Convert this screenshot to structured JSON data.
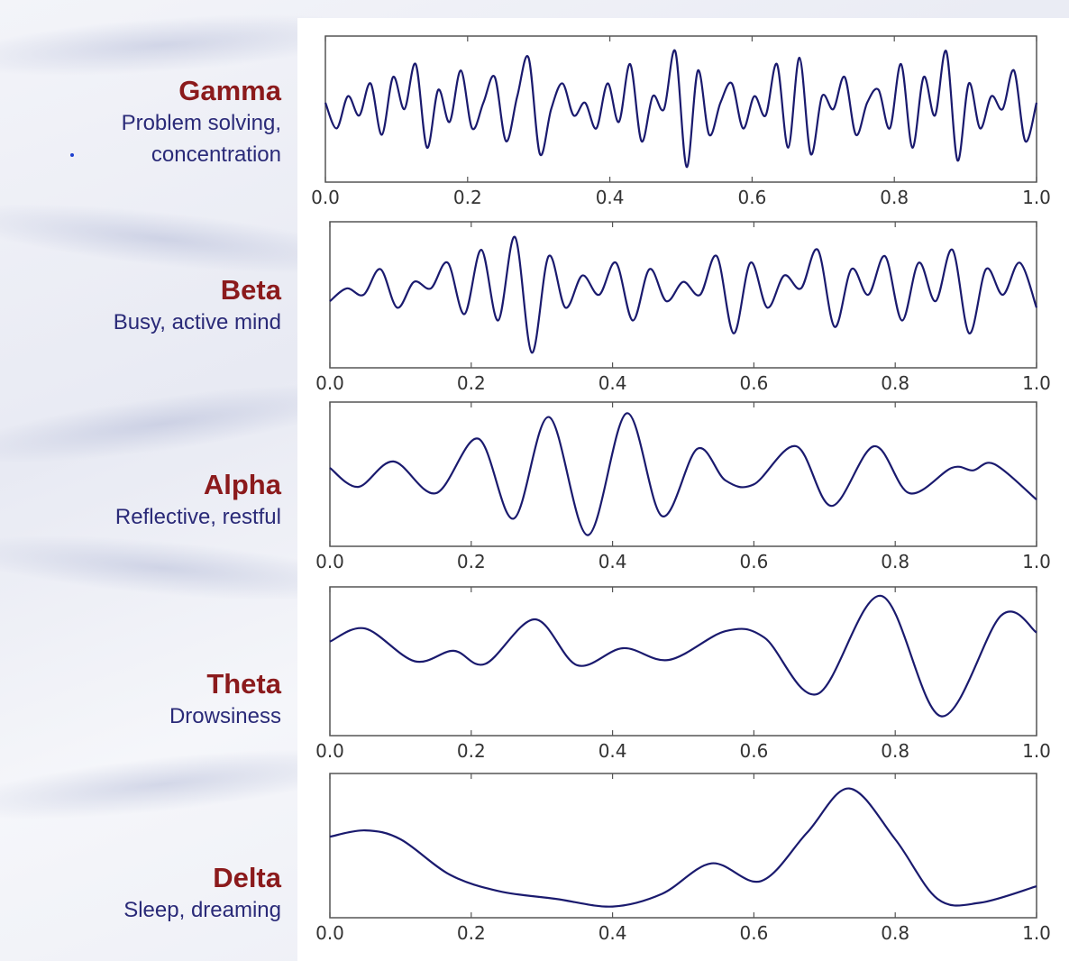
{
  "chart_data": [
    {
      "type": "line",
      "band": "Gamma",
      "description": "Problem solving, concentration",
      "xlim": [
        0.0,
        1.0
      ],
      "xticks": [
        "0.0",
        "0.2",
        "0.4",
        "0.6",
        "0.8",
        "1.0"
      ],
      "grid": false,
      "line_color": "#1a1a6e",
      "frequency_cycles_per_unit": 68,
      "y": [
        0.55,
        0.35,
        0.6,
        0.45,
        0.7,
        0.3,
        0.75,
        0.5,
        0.85,
        0.2,
        0.65,
        0.4,
        0.8,
        0.35,
        0.55,
        0.75,
        0.25,
        0.6,
        0.9,
        0.15,
        0.5,
        0.7,
        0.45,
        0.55,
        0.35,
        0.7,
        0.4,
        0.85,
        0.25,
        0.6,
        0.5,
        0.95,
        0.05,
        0.8,
        0.3,
        0.55,
        0.7,
        0.35,
        0.6,
        0.45,
        0.85,
        0.2,
        0.9,
        0.15,
        0.6,
        0.5,
        0.75,
        0.3,
        0.55,
        0.65,
        0.35,
        0.85,
        0.2,
        0.75,
        0.45,
        0.95,
        0.1,
        0.7,
        0.35,
        0.6,
        0.5,
        0.8,
        0.25,
        0.55
      ]
    },
    {
      "type": "line",
      "band": "Beta",
      "description": "Busy, active mind",
      "xlim": [
        0.0,
        1.0
      ],
      "xticks": [
        "0.0",
        "0.2",
        "0.4",
        "0.6",
        "0.8",
        "1.0"
      ],
      "grid": false,
      "line_color": "#1a1a6e",
      "frequency_cycles_per_unit": 38,
      "y": [
        0.45,
        0.55,
        0.5,
        0.7,
        0.4,
        0.6,
        0.55,
        0.75,
        0.35,
        0.85,
        0.3,
        0.95,
        0.05,
        0.8,
        0.4,
        0.65,
        0.5,
        0.75,
        0.3,
        0.7,
        0.45,
        0.6,
        0.5,
        0.8,
        0.2,
        0.75,
        0.4,
        0.65,
        0.55,
        0.85,
        0.25,
        0.7,
        0.5,
        0.8,
        0.3,
        0.75,
        0.45,
        0.85,
        0.2,
        0.7,
        0.5,
        0.75,
        0.4
      ]
    },
    {
      "type": "line",
      "band": "Alpha",
      "description": "Reflective, restful",
      "xlim": [
        0.0,
        1.0
      ],
      "xticks": [
        "0.0",
        "0.2",
        "0.4",
        "0.6",
        "0.8",
        "1.0"
      ],
      "grid": false,
      "line_color": "#1a1a6e",
      "points": [
        [
          0.0,
          0.55
        ],
        [
          0.04,
          0.4
        ],
        [
          0.09,
          0.6
        ],
        [
          0.15,
          0.35
        ],
        [
          0.21,
          0.78
        ],
        [
          0.26,
          0.15
        ],
        [
          0.31,
          0.95
        ],
        [
          0.365,
          0.02
        ],
        [
          0.42,
          0.98
        ],
        [
          0.47,
          0.17
        ],
        [
          0.52,
          0.7
        ],
        [
          0.56,
          0.45
        ],
        [
          0.6,
          0.42
        ],
        [
          0.66,
          0.72
        ],
        [
          0.71,
          0.25
        ],
        [
          0.77,
          0.72
        ],
        [
          0.82,
          0.35
        ],
        [
          0.88,
          0.55
        ],
        [
          0.91,
          0.53
        ],
        [
          0.94,
          0.58
        ],
        [
          1.0,
          0.3
        ]
      ]
    },
    {
      "type": "line",
      "band": "Theta",
      "description": "Drowsiness",
      "xlim": [
        0.0,
        1.0
      ],
      "xticks": [
        "0.0",
        "0.2",
        "0.4",
        "0.6",
        "0.8",
        "1.0"
      ],
      "grid": false,
      "line_color": "#1a1a6e",
      "points": [
        [
          0.0,
          0.65
        ],
        [
          0.05,
          0.75
        ],
        [
          0.12,
          0.5
        ],
        [
          0.175,
          0.58
        ],
        [
          0.22,
          0.48
        ],
        [
          0.29,
          0.82
        ],
        [
          0.35,
          0.47
        ],
        [
          0.415,
          0.6
        ],
        [
          0.48,
          0.51
        ],
        [
          0.56,
          0.73
        ],
        [
          0.615,
          0.68
        ],
        [
          0.69,
          0.25
        ],
        [
          0.78,
          1.0
        ],
        [
          0.865,
          0.08
        ],
        [
          0.95,
          0.85
        ],
        [
          1.0,
          0.72
        ]
      ]
    },
    {
      "type": "line",
      "band": "Delta",
      "description": "Sleep, dreaming",
      "xlim": [
        0.0,
        1.0
      ],
      "xticks": [
        "0.0",
        "0.2",
        "0.4",
        "0.6",
        "0.8",
        "1.0"
      ],
      "grid": false,
      "line_color": "#1a1a6e",
      "points": [
        [
          0.0,
          0.57
        ],
        [
          0.05,
          0.62
        ],
        [
          0.1,
          0.55
        ],
        [
          0.17,
          0.27
        ],
        [
          0.24,
          0.14
        ],
        [
          0.32,
          0.08
        ],
        [
          0.4,
          0.02
        ],
        [
          0.47,
          0.12
        ],
        [
          0.54,
          0.36
        ],
        [
          0.61,
          0.22
        ],
        [
          0.675,
          0.6
        ],
        [
          0.735,
          0.95
        ],
        [
          0.8,
          0.55
        ],
        [
          0.86,
          0.08
        ],
        [
          0.92,
          0.05
        ],
        [
          1.0,
          0.18
        ]
      ]
    }
  ]
}
